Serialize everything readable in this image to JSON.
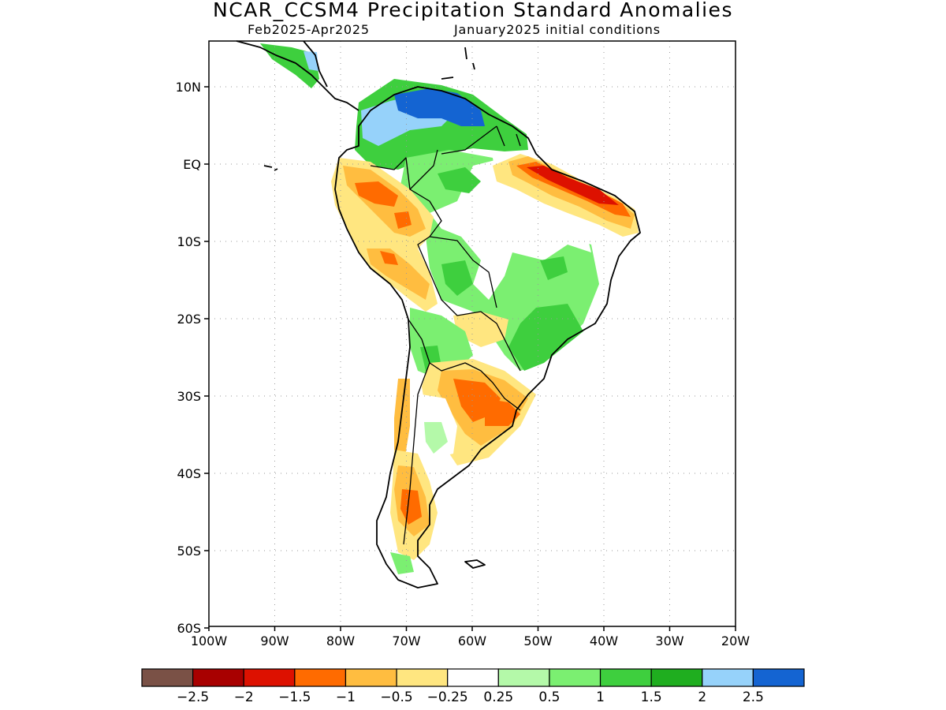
{
  "title": "NCAR_CCSM4 Precipitation Standard Anomalies",
  "subtitle_left": "Feb2025-Apr2025",
  "subtitle_right": "January2025 initial conditions",
  "map": {
    "lat_labels": [
      "10N",
      "EQ",
      "10S",
      "20S",
      "30S",
      "40S",
      "50S",
      "60S"
    ],
    "lon_labels": [
      "100W",
      "90W",
      "80W",
      "70W",
      "60W",
      "50W",
      "40W",
      "30W",
      "20W"
    ]
  },
  "colorbar": {
    "colors": [
      "#7a5146",
      "#a80000",
      "#dd1100",
      "#ff6b00",
      "#ffbd40",
      "#ffe680",
      "#ffffff",
      "#b4f9a9",
      "#7bef71",
      "#3ecf3e",
      "#1fae1f",
      "#96d2fa",
      "#1464d2"
    ],
    "labels": [
      "-2.5",
      "-2",
      "-1.5",
      "-1",
      "-0.5",
      "-0.25",
      "0.25",
      "0.5",
      "1",
      "1.5",
      "2",
      "2.5"
    ]
  }
}
